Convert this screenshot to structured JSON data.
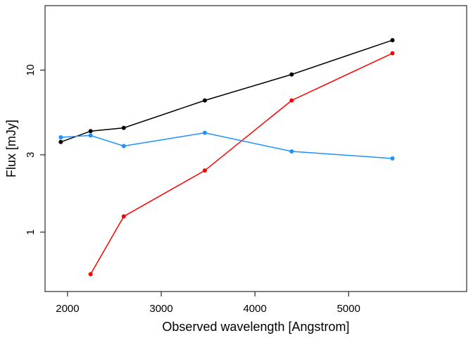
{
  "chart_data": {
    "type": "line",
    "xlabel": "Observed wavelength [Angstrom]",
    "ylabel": "Flux [mJy]",
    "xlim": [
      1760,
      6260
    ],
    "ylim": [
      0.43,
      25
    ],
    "y_scale": "log",
    "grid": false,
    "legend": "none",
    "x_ticks": [
      2000,
      3000,
      4000,
      5000
    ],
    "y_ticks": [
      1,
      3,
      10
    ],
    "series": [
      {
        "color": "#000000",
        "x": [
          1928,
          2246,
          2600,
          3465,
          4392,
          5468
        ],
        "y": [
          3.6,
          4.2,
          4.4,
          6.5,
          9.4,
          15.3
        ]
      },
      {
        "color": "#ff0000",
        "x": [
          2246,
          2600,
          3465,
          4392,
          5468
        ],
        "y": [
          0.55,
          1.25,
          2.4,
          6.5,
          12.7
        ]
      },
      {
        "color": "#1e90ff",
        "x": [
          1928,
          2246,
          2600,
          3465,
          4392,
          5468
        ],
        "y": [
          3.85,
          3.95,
          3.4,
          4.1,
          3.15,
          2.85
        ]
      }
    ]
  }
}
